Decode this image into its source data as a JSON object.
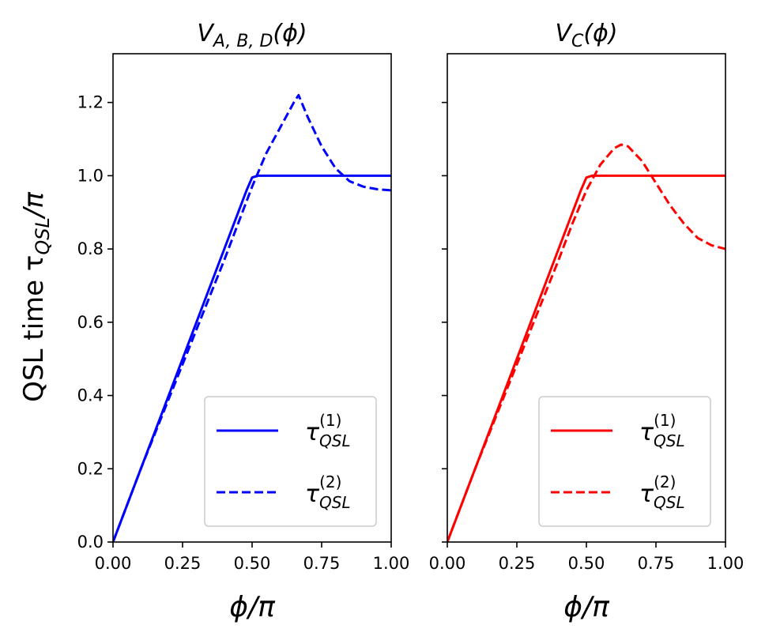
{
  "figure": {
    "ylabel": "QSL time τ",
    "ylabel_sub": "QSL",
    "ylabel_tail": "/π"
  },
  "chart_data": [
    {
      "type": "line",
      "title_main": "V",
      "title_sub": "A, B, D",
      "title_tail": "(ϕ)",
      "xlabel": "ϕ/π",
      "xlim": [
        0,
        1
      ],
      "ylim": [
        0,
        1.333
      ],
      "xticks": [
        "0.00",
        "0.25",
        "0.50",
        "0.75",
        "1.00"
      ],
      "yticks": [
        "0.0",
        "0.2",
        "0.4",
        "0.6",
        "0.8",
        "1.0",
        "1.2"
      ],
      "grid": false,
      "legend_position": "lower-right",
      "color": "#0000ff",
      "series": [
        {
          "name_main": "τ",
          "name_sup": "(1)",
          "name_sub": "QSL",
          "dash": "solid",
          "x": [
            0,
            0.1,
            0.2,
            0.3,
            0.4,
            0.48,
            0.5,
            0.52,
            0.6,
            0.7,
            0.8,
            0.9,
            1.0
          ],
          "y": [
            0,
            0.2,
            0.4,
            0.6,
            0.8,
            0.96,
            0.995,
            1.0,
            1.0,
            1.0,
            1.0,
            1.0,
            1.0
          ]
        },
        {
          "name_main": "τ",
          "name_sup": "(2)",
          "name_sub": "QSL",
          "dash": "dashed",
          "x": [
            0,
            0.1,
            0.2,
            0.3,
            0.4,
            0.5,
            0.55,
            0.6,
            0.65,
            0.667,
            0.7,
            0.75,
            0.8,
            0.85,
            0.9,
            0.95,
            1.0
          ],
          "y": [
            0,
            0.2,
            0.39,
            0.58,
            0.77,
            0.97,
            1.06,
            1.13,
            1.2,
            1.22,
            1.16,
            1.08,
            1.02,
            0.985,
            0.97,
            0.963,
            0.96
          ]
        }
      ]
    },
    {
      "type": "line",
      "title_main": "V",
      "title_sub": "C",
      "title_tail": "(ϕ)",
      "xlabel": "ϕ/π",
      "xlim": [
        0,
        1
      ],
      "ylim": [
        0,
        1.333
      ],
      "xticks": [
        "0.00",
        "0.25",
        "0.50",
        "0.75",
        "1.00"
      ],
      "yticks": [
        "",
        "",
        "",
        "",
        "",
        "",
        ""
      ],
      "grid": false,
      "legend_position": "lower-right",
      "color": "#ff0000",
      "series": [
        {
          "name_main": "τ",
          "name_sup": "(1)",
          "name_sub": "QSL",
          "dash": "solid",
          "x": [
            0,
            0.1,
            0.2,
            0.3,
            0.4,
            0.48,
            0.5,
            0.52,
            0.6,
            0.7,
            0.8,
            0.9,
            1.0
          ],
          "y": [
            0,
            0.2,
            0.4,
            0.6,
            0.8,
            0.96,
            0.995,
            1.0,
            1.0,
            1.0,
            1.0,
            1.0,
            1.0
          ]
        },
        {
          "name_main": "τ",
          "name_sup": "(2)",
          "name_sub": "QSL",
          "dash": "dashed",
          "x": [
            0,
            0.1,
            0.2,
            0.3,
            0.4,
            0.45,
            0.5,
            0.55,
            0.6,
            0.625,
            0.65,
            0.7,
            0.75,
            0.8,
            0.85,
            0.9,
            0.95,
            1.0
          ],
          "y": [
            0,
            0.2,
            0.39,
            0.58,
            0.77,
            0.87,
            0.96,
            1.03,
            1.075,
            1.085,
            1.08,
            1.04,
            0.98,
            0.92,
            0.87,
            0.83,
            0.81,
            0.8
          ]
        }
      ]
    }
  ]
}
